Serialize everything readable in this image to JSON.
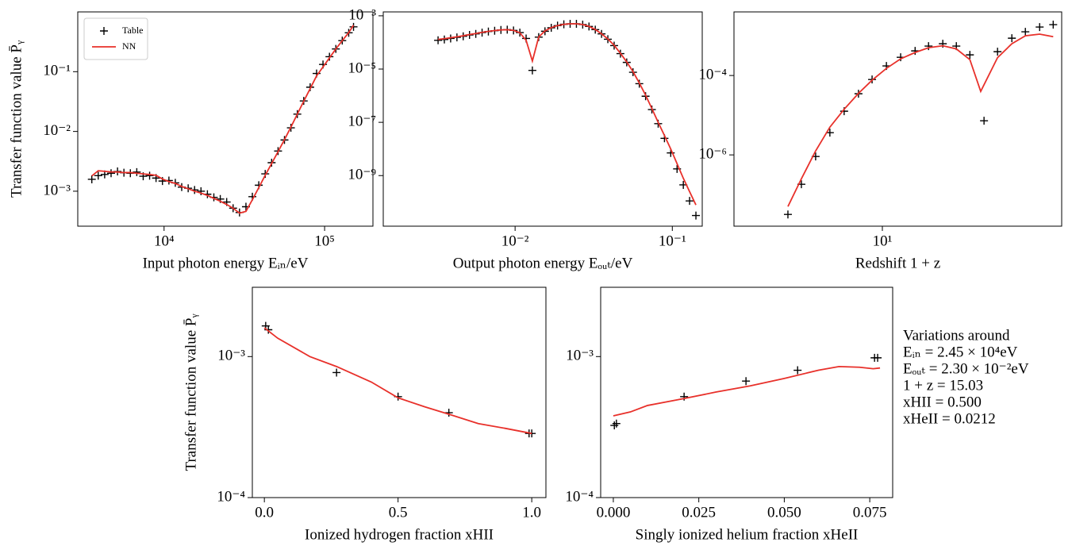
{
  "chart_data": [
    {
      "type": "line",
      "xscale": "log",
      "yscale": "log",
      "x_label": "Input photon energy Eᵢₙ/eV",
      "y_label": "Transfer function value P̄ᵧ",
      "xlim": [
        2900,
        200000
      ],
      "ylim": [
        0.00026,
        1.0
      ],
      "xticks": [
        {
          "value": 10000,
          "label": "10⁴"
        },
        {
          "value": 100000,
          "label": "10⁵"
        }
      ],
      "yticks": [
        {
          "value": 0.001,
          "label": "10⁻³"
        },
        {
          "value": 0.01,
          "label": "10⁻²"
        },
        {
          "value": 0.1,
          "label": "10⁻¹"
        }
      ],
      "legend": "upper left",
      "series": [
        {
          "name": "Table",
          "color": "#000000",
          "marker": "+",
          "linestyle": "none",
          "x": [
            3548,
            3890,
            4266,
            4677,
            5129,
            5623,
            6166,
            6761,
            7413,
            8128,
            8913,
            9772,
            10720,
            11750,
            12880,
            14130,
            15490,
            16980,
            18620,
            20420,
            22390,
            24550,
            26920,
            29510,
            32360,
            35480,
            38900,
            42660,
            46770,
            51290,
            56230,
            61660,
            67610,
            74130,
            81280,
            89130,
            97720,
            107200,
            117500,
            128800,
            141300,
            151400
          ],
          "values": [
            0.00158,
            0.00182,
            0.00191,
            0.002,
            0.00214,
            0.00204,
            0.002,
            0.00209,
            0.00178,
            0.00182,
            0.00166,
            0.00148,
            0.00151,
            0.00138,
            0.00117,
            0.00112,
            0.00105,
            0.001,
            0.00089,
            0.00079,
            0.00074,
            0.00066,
            0.00052,
            0.00044,
            0.00055,
            0.00081,
            0.00126,
            0.00195,
            0.003,
            0.0047,
            0.0072,
            0.0115,
            0.0195,
            0.0324,
            0.055,
            0.0933,
            0.132,
            0.178,
            0.24,
            0.331,
            0.447,
            0.562
          ]
        },
        {
          "name": "NN",
          "color": "#e8302a",
          "linestyle": "solid",
          "x": [
            3548,
            3890,
            4266,
            4677,
            5129,
            5623,
            6166,
            6761,
            7413,
            8128,
            8913,
            9772,
            10720,
            11750,
            12880,
            14130,
            15490,
            16980,
            18620,
            20420,
            22390,
            24550,
            26920,
            29510,
            32360,
            35480,
            38900,
            42660,
            46770,
            51290,
            56230,
            61660,
            67610,
            74130,
            81280,
            89130,
            97720,
            107200,
            117500,
            128800,
            141300,
            151400
          ],
          "values": [
            0.0018,
            0.0022,
            0.00215,
            0.0021,
            0.0021,
            0.00205,
            0.00205,
            0.002,
            0.00195,
            0.0019,
            0.00185,
            0.0016,
            0.00145,
            0.00135,
            0.0012,
            0.0011,
            0.001,
            0.00093,
            0.00085,
            0.00076,
            0.00068,
            0.0006,
            0.00052,
            0.00043,
            0.00046,
            0.00072,
            0.00115,
            0.00185,
            0.0029,
            0.0046,
            0.0073,
            0.0118,
            0.0195,
            0.032,
            0.052,
            0.085,
            0.12,
            0.17,
            0.24,
            0.33,
            0.45,
            0.6
          ]
        }
      ]
    },
    {
      "type": "line",
      "xscale": "log",
      "yscale": "log",
      "x_label": "Output photon energy Eₒᵤₜ/eV",
      "xlim": [
        0.00145,
        0.155
      ],
      "ylim": [
        1.26e-11,
        0.0014
      ],
      "xticks": [
        {
          "value": 0.01,
          "label": "10⁻²"
        },
        {
          "value": 0.1,
          "label": "10⁻¹"
        }
      ],
      "yticks": [
        {
          "value": 1e-09,
          "label": "10⁻⁹"
        },
        {
          "value": 1e-07,
          "label": "10⁻⁷"
        },
        {
          "value": 1e-05,
          "label": "10⁻⁵"
        },
        {
          "value": 0.001,
          "label": "10⁻³"
        }
      ],
      "series": [
        {
          "color": "#000000",
          "marker": "+",
          "linestyle": "none",
          "x": [
            0.003236,
            0.003548,
            0.00389,
            0.004266,
            0.004677,
            0.005129,
            0.005623,
            0.006166,
            0.006761,
            0.007413,
            0.008128,
            0.008913,
            0.009772,
            0.01072,
            0.01175,
            0.01288,
            0.01413,
            0.01549,
            0.01698,
            0.01862,
            0.02042,
            0.02239,
            0.02455,
            0.02692,
            0.02951,
            0.03236,
            0.03548,
            0.0389,
            0.04266,
            0.04677,
            0.05129,
            0.05623,
            0.06166,
            0.06761,
            0.07413,
            0.08128,
            0.08913,
            0.09772,
            0.1072,
            0.1175,
            0.1288,
            0.1413
          ],
          "values": [
            0.00012,
            0.000129,
            0.000141,
            0.000155,
            0.00017,
            0.000191,
            0.000209,
            0.000234,
            0.000257,
            0.000275,
            0.000295,
            0.000302,
            0.000282,
            0.000234,
            0.000141,
            8.91e-06,
            0.000158,
            0.000263,
            0.000355,
            0.000427,
            0.000479,
            0.000501,
            0.000501,
            0.000468,
            0.000398,
            0.000302,
            0.000209,
            0.000132,
            7.59e-05,
            3.8e-05,
            1.78e-05,
            7.59e-06,
            2.82e-06,
            9.55e-07,
            3.02e-07,
            8.91e-08,
            2.51e-08,
            7.08e-09,
            1.78e-09,
            4.47e-10,
            1.12e-10,
            3.16e-11
          ]
        },
        {
          "color": "#e8302a",
          "linestyle": "solid",
          "x": [
            0.003236,
            0.003548,
            0.00389,
            0.004266,
            0.004677,
            0.005129,
            0.005623,
            0.006166,
            0.006761,
            0.007413,
            0.008128,
            0.008913,
            0.009772,
            0.01072,
            0.01175,
            0.01288,
            0.01413,
            0.01549,
            0.01698,
            0.01862,
            0.02042,
            0.02239,
            0.02455,
            0.02692,
            0.02951,
            0.03236,
            0.03548,
            0.0389,
            0.04266,
            0.04677,
            0.05129,
            0.05623,
            0.06166,
            0.06761,
            0.07413,
            0.08128,
            0.08913,
            0.09772,
            0.1072,
            0.1175,
            0.1288,
            0.1413
          ],
          "values": [
            0.00013,
            0.000138,
            0.00015,
            0.000163,
            0.000178,
            0.000198,
            0.000216,
            0.00024,
            0.00026,
            0.00028,
            0.000295,
            0.0003,
            0.000285,
            0.00023,
            0.00012,
            2e-05,
            0.00016,
            0.00027,
            0.00036,
            0.00043,
            0.00048,
            0.0005,
            0.0005,
            0.00047,
            0.0004,
            0.000305,
            0.00021,
            0.000135,
            7.8e-05,
            3.9e-05,
            1.85e-05,
            8e-06,
            3e-06,
            1.05e-06,
            3.3e-07,
            1e-07,
            3.2e-08,
            1e-08,
            2.8e-09,
            7.9e-10,
            2.5e-10,
            7.9e-11
          ]
        }
      ]
    },
    {
      "type": "line",
      "xscale": "log",
      "yscale": "log",
      "x_label": "Redshift 1 + z",
      "xlim": [
        1.19,
        131
      ],
      "ylim": [
        1.6e-08,
        0.004
      ],
      "xticks": [
        {
          "value": 10,
          "label": "10¹"
        }
      ],
      "yticks": [
        {
          "value": 1e-06,
          "label": "10⁻⁶"
        },
        {
          "value": 0.0001,
          "label": "10⁻⁴"
        }
      ],
      "series": [
        {
          "color": "#000000",
          "marker": "+",
          "linestyle": "none",
          "x": [
            2.58,
            3.13,
            3.84,
            4.71,
            5.78,
            7.1,
            8.63,
            10.6,
            13.0,
            16.0,
            19.4,
            23.8,
            28.9,
            35.1,
            43.0,
            52.2,
            64.1,
            77.8,
            95.5,
            116
          ],
          "values": [
            3.16e-08,
            1.82e-07,
            9.12e-07,
            3.63e-06,
            1.26e-05,
            3.47e-05,
            7.94e-05,
            0.000174,
            0.000288,
            0.000417,
            0.00055,
            0.000631,
            0.00055,
            0.000331,
            7.24e-06,
            0.000398,
            0.000871,
            0.00126,
            0.00166,
            0.00191
          ]
        },
        {
          "color": "#e8302a",
          "linestyle": "solid",
          "x": [
            2.58,
            3.13,
            3.84,
            4.71,
            5.78,
            7.1,
            8.63,
            10.6,
            13.0,
            16.0,
            19.4,
            23.8,
            28.9,
            35.1,
            41.0,
            52.2,
            64.1,
            77.8,
            95.5,
            116
          ],
          "values": [
            5e-08,
            2.5e-07,
            1.26e-06,
            5e-06,
            1.41e-05,
            3.55e-05,
            7.6e-05,
            0.000151,
            0.000263,
            0.00038,
            0.0005,
            0.000562,
            0.000468,
            0.000251,
            3.98e-05,
            0.000282,
            0.000631,
            0.001,
            0.0011,
            0.00095
          ]
        }
      ]
    },
    {
      "type": "line",
      "xscale": "linear",
      "yscale": "log",
      "x_label": "Ionized hydrogen fraction xHII",
      "y_label": "Transfer function value P̄ᵧ",
      "xlim": [
        -0.045,
        1.053
      ],
      "ylim": [
        0.0001,
        0.0031
      ],
      "xticks": [
        {
          "value": 0,
          "label": "0.0"
        },
        0.5,
        {
          "value": 1,
          "label": "1.0"
        }
      ],
      "yticks": [
        {
          "value": 0.0001,
          "label": "10⁻⁴"
        },
        {
          "value": 0.001,
          "label": "10⁻³"
        }
      ],
      "series": [
        {
          "color": "#000000",
          "marker": "+",
          "linestyle": "none",
          "x": [
            0.005,
            0.015,
            0.27,
            0.5,
            0.69,
            0.99,
            1.0
          ],
          "values": [
            0.00165,
            0.00155,
            0.00077,
            0.00052,
            0.0004,
            0.000285,
            0.000285
          ]
        },
        {
          "color": "#e8302a",
          "linestyle": "solid",
          "x": [
            0,
            0.05,
            0.17,
            0.27,
            0.4,
            0.5,
            0.6,
            0.7,
            0.8,
            0.9,
            1.0
          ],
          "values": [
            0.0016,
            0.00135,
            0.001,
            0.00085,
            0.00066,
            0.00051,
            0.00044,
            0.000385,
            0.000335,
            0.00031,
            0.000285
          ]
        }
      ]
    },
    {
      "type": "line",
      "xscale": "linear",
      "yscale": "log",
      "x_label": "Singly ionized helium fraction xHeII",
      "xlim": [
        -0.0037,
        0.0817
      ],
      "ylim": [
        0.0001,
        0.0031
      ],
      "xticks": [
        {
          "value": 0,
          "label": "0.000"
        },
        0.025,
        {
          "value": 0.05,
          "label": "0.050"
        },
        0.075
      ],
      "yticks": [
        {
          "value": 0.0001,
          "label": "10⁻⁴"
        },
        {
          "value": 0.001,
          "label": "10⁻³"
        }
      ],
      "series": [
        {
          "color": "#000000",
          "marker": "+",
          "linestyle": "none",
          "x": [
            0.0003,
            0.0009,
            0.0207,
            0.0388,
            0.0539,
            0.0764,
            0.0773
          ],
          "values": [
            0.000325,
            0.000335,
            0.00052,
            0.00067,
            0.0008,
            0.00098,
            0.00098
          ]
        },
        {
          "color": "#e8302a",
          "linestyle": "solid",
          "x": [
            0,
            0.005,
            0.01,
            0.02,
            0.03,
            0.04,
            0.05,
            0.06,
            0.066,
            0.072,
            0.076,
            0.078
          ],
          "values": [
            0.00038,
            0.000405,
            0.00045,
            0.0005,
            0.00056,
            0.00062,
            0.0007,
            0.0008,
            0.00085,
            0.00084,
            0.00082,
            0.00083
          ]
        }
      ]
    }
  ],
  "annotation": {
    "lines": [
      "Variations around",
      "Eᵢₙ = 2.45 × 10⁴eV",
      "Eₒᵤₜ = 2.30 × 10⁻²eV",
      "1 + z = 15.03",
      "xHII = 0.500",
      "xHeII = 0.0212"
    ]
  }
}
